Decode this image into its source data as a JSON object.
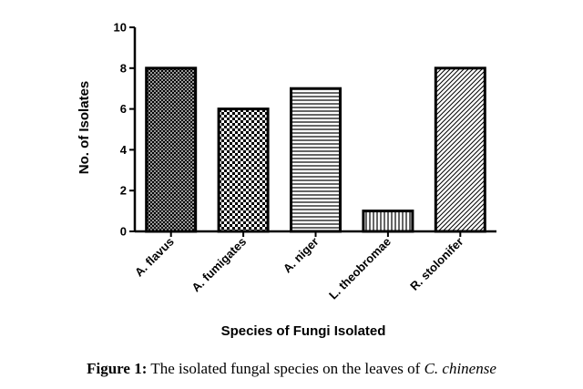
{
  "chart_data": {
    "type": "bar",
    "categories": [
      "A. flavus",
      "A. fumigates",
      "A. niger",
      "L. theobromae",
      "R. stolonifer"
    ],
    "values": [
      8,
      6,
      7,
      1,
      8
    ],
    "patterns": [
      "dense-crosshatch",
      "checker",
      "horizontal-lines",
      "vertical-lines",
      "diagonal-lines"
    ],
    "xlabel": "Species of Fungi Isolated",
    "ylabel": "No. of Isolates",
    "ylim": [
      0,
      10
    ],
    "yticks": [
      "0",
      "2",
      "4",
      "6",
      "8",
      "10"
    ],
    "grid": false,
    "bar_color": "#000000"
  },
  "caption": {
    "label": "Figure 1:",
    "text": " The isolated fungal species on the leaves of ",
    "species": "C. chinense"
  }
}
